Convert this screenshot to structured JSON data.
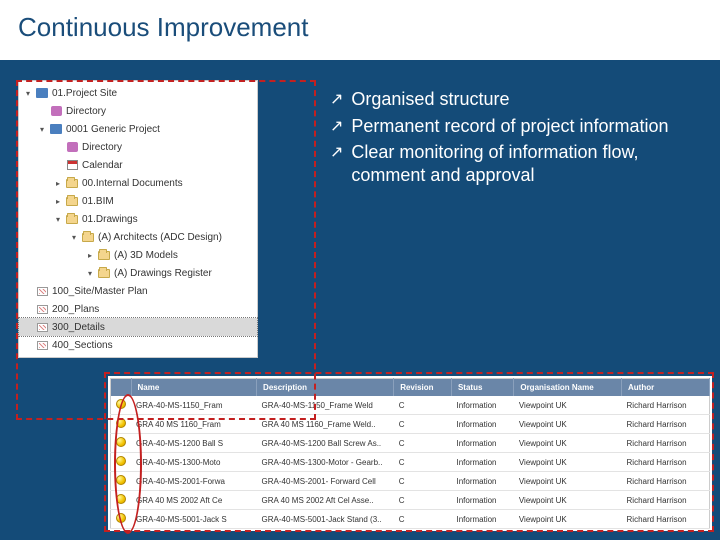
{
  "title": "Continuous Improvement",
  "colors": {
    "slide_bg": "#144b78",
    "title_color": "#1a4d7a",
    "annot_red": "#c32020",
    "table_header_bg": "#6a86a8",
    "status_dot_fill": "#f2c200"
  },
  "bullets": [
    "Organised structure",
    "Permanent record of project information",
    "Clear monitoring of information flow, comment and approval"
  ],
  "tree": [
    {
      "indent": 1,
      "twisty": "down",
      "icon": "site",
      "label": "01.Project Site"
    },
    {
      "indent": 2,
      "twisty": "",
      "icon": "dir",
      "label": "Directory"
    },
    {
      "indent": 2,
      "twisty": "down",
      "icon": "site",
      "label": "0001 Generic Project"
    },
    {
      "indent": 3,
      "twisty": "",
      "icon": "dir",
      "label": "Directory"
    },
    {
      "indent": 3,
      "twisty": "",
      "icon": "cal",
      "label": "Calendar"
    },
    {
      "indent": 3,
      "twisty": "right",
      "icon": "folder",
      "label": "00.Internal Documents"
    },
    {
      "indent": 3,
      "twisty": "right",
      "icon": "folder",
      "label": "01.BIM"
    },
    {
      "indent": 3,
      "twisty": "down",
      "icon": "folder",
      "label": "01.Drawings"
    },
    {
      "indent": 4,
      "twisty": "down",
      "icon": "folder",
      "label": "(A) Architects (ADC Design)"
    },
    {
      "indent": 5,
      "twisty": "right",
      "icon": "folder",
      "label": "(A) 3D Models"
    },
    {
      "indent": 5,
      "twisty": "down",
      "icon": "folder",
      "label": "(A) Drawings Register"
    },
    {
      "indent": 5,
      "twisty": "",
      "icon": "plan",
      "label": "100_Site/Master Plan",
      "child": true
    },
    {
      "indent": 5,
      "twisty": "",
      "icon": "plan",
      "label": "200_Plans",
      "child": true
    },
    {
      "indent": 5,
      "twisty": "",
      "icon": "plan",
      "label": "300_Details",
      "child": true,
      "selected": true
    },
    {
      "indent": 5,
      "twisty": "",
      "icon": "plan",
      "label": "400_Sections",
      "child": true
    }
  ],
  "table": {
    "columns": [
      "",
      "Name",
      "Description",
      "Revision",
      "Status",
      "Organisation Name",
      "Author"
    ],
    "rows": [
      [
        "dot",
        "GRA-40-MS-1150_Fram",
        "GRA-40-MS-1150_Frame Weld",
        "C",
        "Information",
        "Viewpoint UK",
        "Richard Harrison"
      ],
      [
        "dot",
        "GRA 40 MS 1160_Fram",
        "GRA 40 MS 1160_Frame Weld..",
        "C",
        "Information",
        "Viewpoint UK",
        "Richard Harrison"
      ],
      [
        "dot",
        "GRA-40-MS-1200 Ball S",
        "GRA-40-MS-1200 Ball Screw As..",
        "C",
        "Information",
        "Viewpoint UK",
        "Richard Harrison"
      ],
      [
        "dot",
        "GRA-40-MS-1300-Moto",
        "GRA-40-MS-1300-Motor - Gearb..",
        "C",
        "Information",
        "Viewpoint UK",
        "Richard Harrison"
      ],
      [
        "dot",
        "GRA-40-MS-2001-Forwa",
        "GRA-40-MS-2001- Forward Cell",
        "C",
        "Information",
        "Viewpoint UK",
        "Richard Harrison"
      ],
      [
        "dot",
        "GRA 40 MS 2002 Aft Ce",
        "GRA 40 MS 2002 Aft Cel Asse..",
        "C",
        "Information",
        "Viewpoint UK",
        "Richard Harrison"
      ],
      [
        "dot",
        "GRA-40-MS-5001-Jack S",
        "GRA-40-MS-5001-Jack Stand (3..",
        "C",
        "Information",
        "Viewpoint UK",
        "Richard Harrison"
      ]
    ]
  }
}
